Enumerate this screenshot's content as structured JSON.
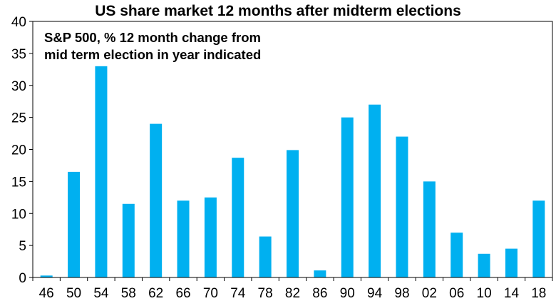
{
  "chart_data": {
    "type": "bar",
    "title": "US share market 12 months after midterm elections",
    "subtitle": [
      "S&P 500, % 12 month change from",
      "mid term election in year indicated"
    ],
    "xlabel": "",
    "ylabel": "",
    "ylim": [
      0,
      40
    ],
    "yticks": [
      0,
      5,
      10,
      15,
      20,
      25,
      30,
      35,
      40
    ],
    "grid": false,
    "categories": [
      "46",
      "50",
      "54",
      "58",
      "62",
      "66",
      "70",
      "74",
      "78",
      "82",
      "86",
      "90",
      "94",
      "98",
      "02",
      "06",
      "10",
      "14",
      "18"
    ],
    "values": [
      0.3,
      16.5,
      33,
      11.5,
      24,
      12,
      12.5,
      18.7,
      6.4,
      19.9,
      1.1,
      25,
      27,
      22,
      15,
      7,
      3.7,
      4.5,
      12
    ],
    "bar_color": "#00B0F0"
  }
}
